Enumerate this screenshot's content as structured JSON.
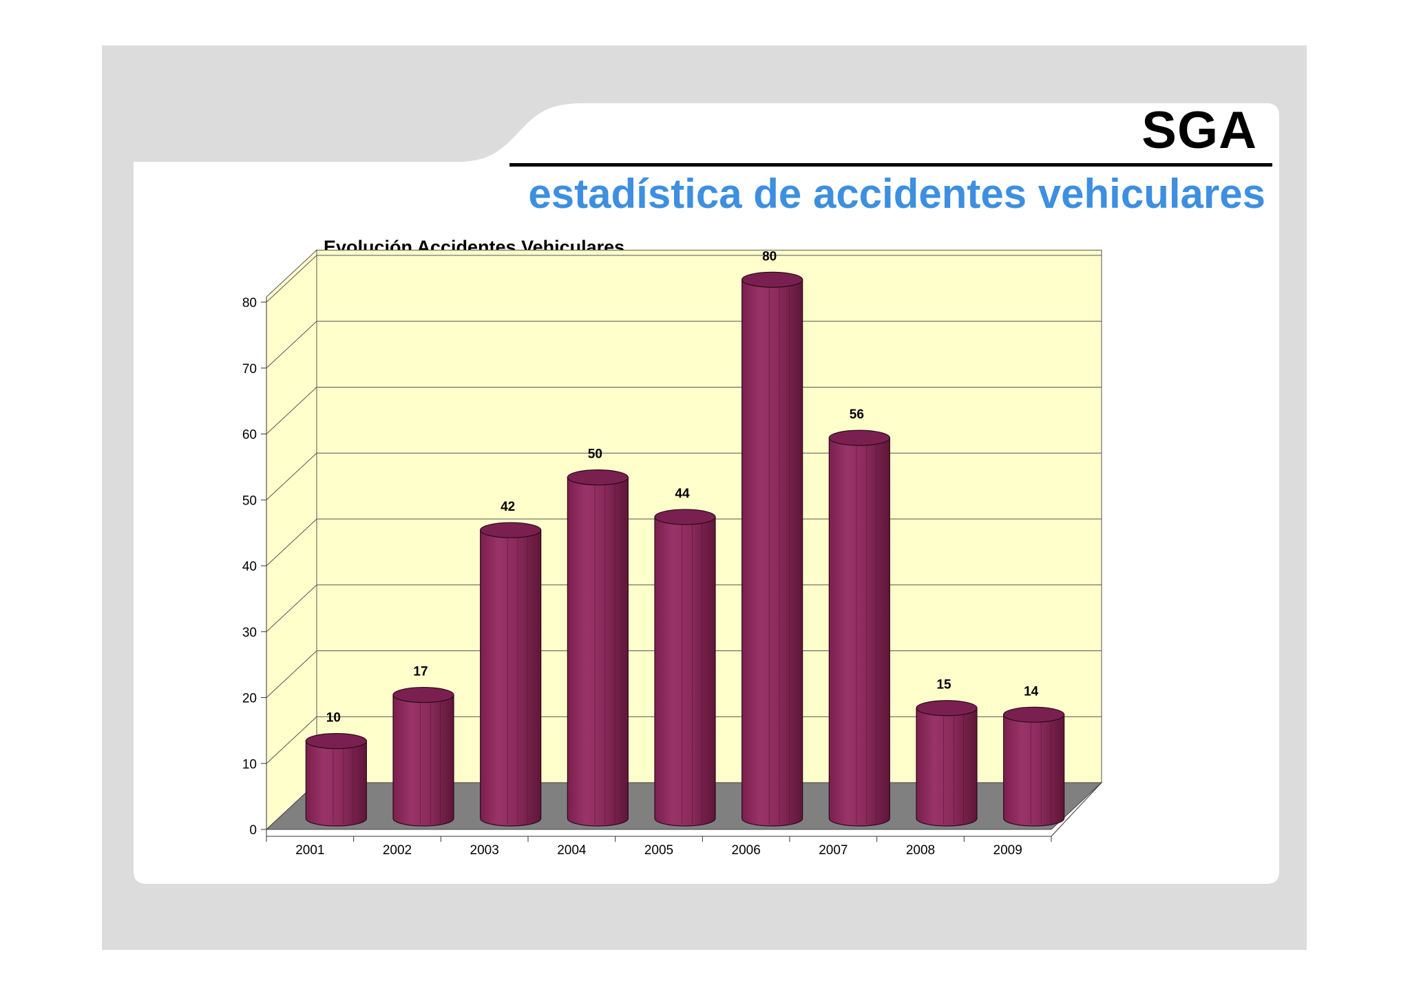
{
  "header": {
    "title": "SGA",
    "subtitle": "estadística de accidentes vehiculares"
  },
  "colors": {
    "frame": "#dcdcdd",
    "accent": "#3d8fe0",
    "wall": "#ffffcc",
    "floor": "#808080",
    "bar": "#8b2a5c"
  },
  "chart_data": {
    "type": "bar",
    "title": "Evolución Accidentes Vehiculares",
    "xlabel": "",
    "ylabel": "",
    "categories": [
      "2001",
      "2002",
      "2003",
      "2004",
      "2005",
      "2006",
      "2007",
      "2008",
      "2009"
    ],
    "values": [
      10,
      17,
      42,
      50,
      44,
      80,
      56,
      15,
      14
    ],
    "data_labels": [
      "10",
      "17",
      "42",
      "50",
      "44",
      "80",
      "56",
      "15",
      "14"
    ],
    "yticks": [
      "0",
      "10",
      "20",
      "30",
      "40",
      "50",
      "60",
      "70",
      "80"
    ],
    "ylim": [
      0,
      80
    ],
    "grid": true,
    "legend": "none",
    "style": "3d-cylinder"
  }
}
